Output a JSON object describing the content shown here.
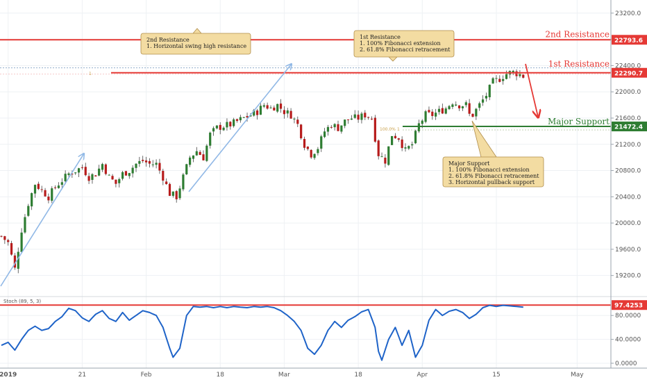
{
  "chart_data": [
    {
      "type": "candlestick",
      "title": "",
      "xlabel": "",
      "ylabel": "",
      "ylim": [
        18900,
        23400
      ],
      "x_ticks": [
        "2019",
        "21",
        "Feb",
        "18",
        "Mar",
        "18",
        "Apr",
        "15",
        "May"
      ],
      "y_ticks": [
        19200,
        19600,
        20000,
        20400,
        20800,
        21200,
        21600,
        22000,
        22400,
        22800,
        23200
      ],
      "grid": true,
      "colors": {
        "up": "#2e7d32",
        "down": "#b71c1c",
        "resistance": "#e53935",
        "support": "#2e7d32",
        "arrow_up": "#90b8e6"
      },
      "anchors": [
        [
          0,
          19800
        ],
        [
          2,
          19700
        ],
        [
          4,
          19300
        ],
        [
          6,
          19900
        ],
        [
          8,
          20300
        ],
        [
          10,
          20600
        ],
        [
          12,
          20500
        ],
        [
          14,
          20400
        ],
        [
          16,
          20550
        ],
        [
          18,
          20650
        ],
        [
          20,
          20750
        ],
        [
          22,
          20800
        ],
        [
          24,
          20850
        ],
        [
          26,
          20700
        ],
        [
          28,
          20750
        ],
        [
          30,
          20900
        ],
        [
          32,
          20700
        ],
        [
          34,
          20600
        ],
        [
          36,
          20750
        ],
        [
          38,
          20800
        ],
        [
          40,
          20900
        ],
        [
          42,
          20950
        ],
        [
          44,
          20900
        ],
        [
          46,
          20900
        ],
        [
          48,
          20700
        ],
        [
          50,
          20450
        ],
        [
          52,
          20400
        ],
        [
          54,
          20700
        ],
        [
          56,
          21000
        ],
        [
          58,
          21100
        ],
        [
          60,
          21000
        ],
        [
          62,
          21350
        ],
        [
          64,
          21450
        ],
        [
          66,
          21480
        ],
        [
          68,
          21500
        ],
        [
          70,
          21550
        ],
        [
          72,
          21600
        ],
        [
          74,
          21650
        ],
        [
          76,
          21700
        ],
        [
          78,
          21800
        ],
        [
          80,
          21750
        ],
        [
          82,
          21800
        ],
        [
          84,
          21700
        ],
        [
          86,
          21650
        ],
        [
          88,
          21500
        ],
        [
          90,
          21200
        ],
        [
          92,
          21050
        ],
        [
          94,
          21150
        ],
        [
          96,
          21400
        ],
        [
          98,
          21500
        ],
        [
          100,
          21450
        ],
        [
          102,
          21550
        ],
        [
          104,
          21600
        ],
        [
          106,
          21600
        ],
        [
          108,
          21650
        ],
        [
          110,
          21600
        ],
        [
          111,
          21300
        ],
        [
          112,
          21050
        ],
        [
          114,
          20950
        ],
        [
          116,
          21350
        ],
        [
          118,
          21300
        ],
        [
          120,
          21100
        ],
        [
          122,
          21200
        ],
        [
          124,
          21500
        ],
        [
          126,
          21650
        ],
        [
          128,
          21650
        ],
        [
          130,
          21700
        ],
        [
          132,
          21750
        ],
        [
          134,
          21850
        ],
        [
          136,
          21800
        ],
        [
          138,
          21800
        ],
        [
          139,
          21650
        ],
        [
          140,
          21650
        ],
        [
          142,
          21800
        ],
        [
          144,
          21950
        ],
        [
          146,
          22150
        ],
        [
          148,
          22200
        ],
        [
          150,
          22280
        ],
        [
          152,
          22300
        ],
        [
          154,
          22270
        ],
        [
          155,
          22240
        ]
      ],
      "annotations": [
        {
          "text": "2nd Resistance",
          "value": 22793.6
        },
        {
          "text": "1st Resistance",
          "value": 22290.7
        },
        {
          "text": "Major Support",
          "value": 21472.4
        }
      ],
      "price_labels": [
        "22793.6",
        "22290.7",
        "21472.4"
      ],
      "callouts": [
        {
          "name": "second-resistance",
          "lines": [
            "2nd Resistance",
            "1. Horizontal swing high resistance"
          ]
        },
        {
          "name": "first-resistance",
          "lines": [
            "1st Resistance",
            "1. 100% Fibonacci extension",
            "2. 61.8% Fibonacci retracement"
          ]
        },
        {
          "name": "major-support",
          "lines": [
            "Major Support",
            "1. 100% Fibonacci extension",
            "2. 61.8% Fibonacci retracement",
            "3. Horizontal pullback support"
          ]
        }
      ],
      "fib_markers": [
        "1",
        "100.0%",
        "1"
      ]
    },
    {
      "type": "line",
      "indicator_label": "Stoch (89, 5, 3)",
      "ylim": [
        0,
        100
      ],
      "y_ticks": [
        "0.0000",
        "40.0000",
        "80.0000"
      ],
      "level_label": "97.4253",
      "level_value": 97.4253,
      "series_color": "#1e63c8",
      "anchors": [
        [
          0,
          30
        ],
        [
          2,
          35
        ],
        [
          4,
          22
        ],
        [
          6,
          40
        ],
        [
          8,
          55
        ],
        [
          10,
          62
        ],
        [
          12,
          55
        ],
        [
          14,
          58
        ],
        [
          16,
          70
        ],
        [
          18,
          78
        ],
        [
          20,
          92
        ],
        [
          22,
          88
        ],
        [
          24,
          76
        ],
        [
          26,
          70
        ],
        [
          28,
          82
        ],
        [
          30,
          88
        ],
        [
          32,
          75
        ],
        [
          34,
          70
        ],
        [
          36,
          85
        ],
        [
          38,
          72
        ],
        [
          40,
          80
        ],
        [
          42,
          88
        ],
        [
          44,
          85
        ],
        [
          46,
          80
        ],
        [
          48,
          60
        ],
        [
          50,
          25
        ],
        [
          51,
          10
        ],
        [
          53,
          25
        ],
        [
          55,
          80
        ],
        [
          57,
          95
        ],
        [
          59,
          94
        ],
        [
          61,
          95
        ],
        [
          63,
          93
        ],
        [
          65,
          95
        ],
        [
          67,
          93
        ],
        [
          69,
          95
        ],
        [
          71,
          94
        ],
        [
          73,
          93
        ],
        [
          75,
          95
        ],
        [
          77,
          94
        ],
        [
          79,
          95
        ],
        [
          81,
          93
        ],
        [
          83,
          88
        ],
        [
          85,
          80
        ],
        [
          87,
          70
        ],
        [
          89,
          55
        ],
        [
          91,
          25
        ],
        [
          93,
          15
        ],
        [
          95,
          30
        ],
        [
          97,
          55
        ],
        [
          99,
          70
        ],
        [
          101,
          60
        ],
        [
          103,
          72
        ],
        [
          105,
          78
        ],
        [
          107,
          86
        ],
        [
          109,
          90
        ],
        [
          111,
          60
        ],
        [
          112,
          20
        ],
        [
          113,
          5
        ],
        [
          115,
          40
        ],
        [
          117,
          60
        ],
        [
          119,
          30
        ],
        [
          121,
          55
        ],
        [
          123,
          10
        ],
        [
          125,
          30
        ],
        [
          127,
          72
        ],
        [
          129,
          90
        ],
        [
          131,
          80
        ],
        [
          133,
          87
        ],
        [
          135,
          90
        ],
        [
          137,
          85
        ],
        [
          139,
          75
        ],
        [
          141,
          82
        ],
        [
          143,
          93
        ],
        [
          145,
          97
        ],
        [
          147,
          95
        ],
        [
          149,
          97
        ],
        [
          151,
          96
        ],
        [
          153,
          95
        ],
        [
          155,
          94
        ]
      ]
    }
  ]
}
